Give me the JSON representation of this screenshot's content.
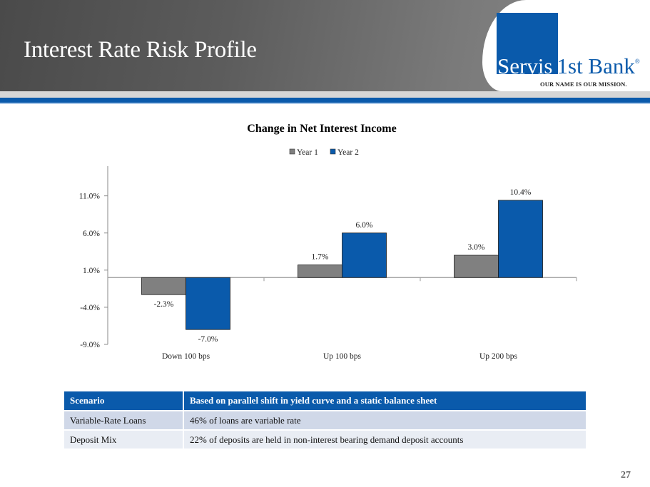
{
  "header": {
    "title": "Interest Rate Risk Profile",
    "logo": {
      "servis": "Servis",
      "rest": "1st Bank",
      "registered": "®",
      "tagline": "OUR NAME IS OUR MISSION."
    }
  },
  "colors": {
    "brand_blue": "#0a5aab",
    "year1_gray": "#808080",
    "year2_blue": "#0a5aab"
  },
  "chart_data": {
    "type": "bar",
    "title": "Change in Net Interest Income",
    "categories": [
      "Down 100 bps",
      "Up 100 bps",
      "Up 200 bps"
    ],
    "series": [
      {
        "name": "Year 1",
        "values": [
          -2.3,
          1.7,
          3.0
        ],
        "labels": [
          "-2.3%",
          "1.7%",
          "3.0%"
        ],
        "color": "#808080"
      },
      {
        "name": "Year 2",
        "values": [
          -7.0,
          6.0,
          10.4
        ],
        "labels": [
          "-7.0%",
          "6.0%",
          "10.4%"
        ],
        "color": "#0a5aab"
      }
    ],
    "xlabel": "",
    "ylabel": "",
    "ylim": [
      -9,
      15
    ],
    "yticks": [
      11,
      6,
      1,
      -4,
      -9
    ],
    "ytick_labels": [
      "11.0%",
      "6.0%",
      "1.0%",
      "-4.0%",
      "-9.0%"
    ],
    "legend": "top-center",
    "grid": false
  },
  "table": {
    "rows": [
      {
        "label": "Scenario",
        "value": "Based on parallel shift in yield curve and a static balance sheet"
      },
      {
        "label": "Variable-Rate Loans",
        "value": "46% of loans are variable rate"
      },
      {
        "label": "Deposit Mix",
        "value": "22% of deposits are held in non-interest bearing demand deposit accounts"
      }
    ]
  },
  "footer": {
    "page_number": "27"
  }
}
